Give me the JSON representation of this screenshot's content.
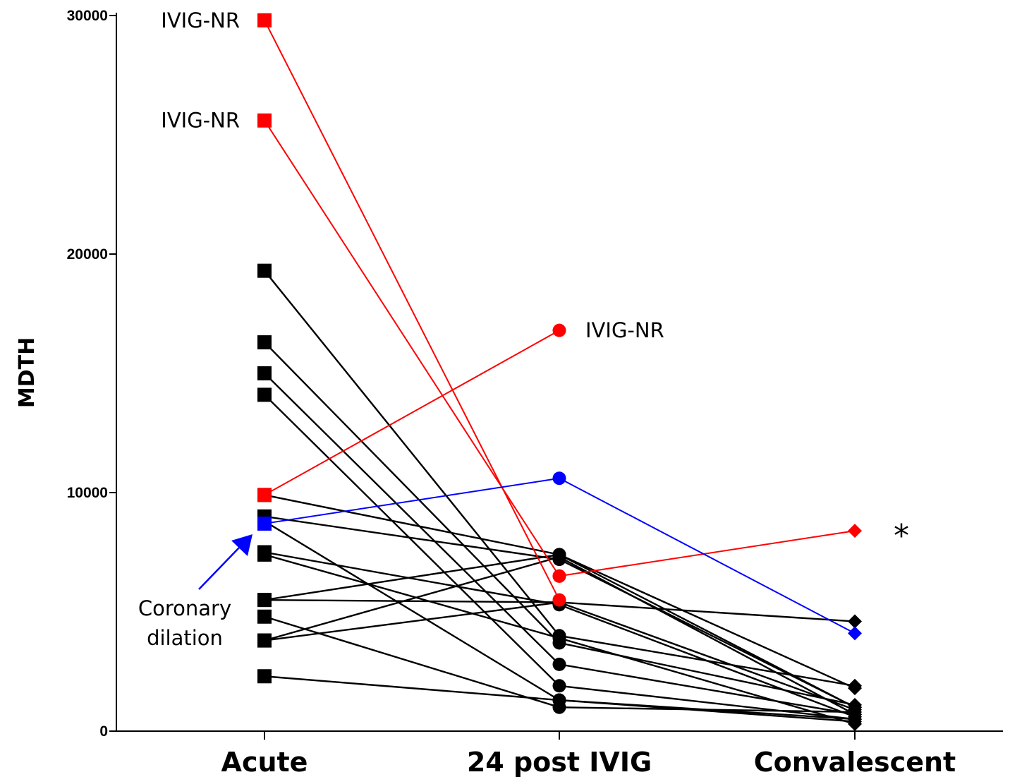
{
  "chart_data": {
    "type": "line",
    "title": "",
    "xlabel": "",
    "ylabel": "MDTH",
    "categories": [
      "Acute",
      "24 post IVIG",
      "Convalescent"
    ],
    "ylim": [
      0,
      30000
    ],
    "yticks": [
      "0",
      "10000",
      "20000",
      "30000"
    ],
    "colors": {
      "default": "#000000",
      "nr": "#ff0000",
      "coronary": "#0000ff"
    },
    "series": [
      {
        "values": [
          29800,
          5500,
          null
        ],
        "color": "nr"
      },
      {
        "values": [
          25600,
          6500,
          null
        ],
        "color": "nr"
      },
      {
        "values": [
          9900,
          16800,
          null
        ],
        "color": "nr"
      },
      {
        "values": [
          null,
          6500,
          8400
        ],
        "color": "nr"
      },
      {
        "values": [
          8700,
          10600,
          4100
        ],
        "color": "coronary"
      },
      {
        "values": [
          19300,
          4000,
          1900
        ],
        "color": "default"
      },
      {
        "values": [
          16300,
          3700,
          1100
        ],
        "color": "default"
      },
      {
        "values": [
          15000,
          2800,
          700
        ],
        "color": "default"
      },
      {
        "values": [
          14100,
          1900,
          500
        ],
        "color": "default"
      },
      {
        "values": [
          9900,
          7400,
          1800
        ],
        "color": "default"
      },
      {
        "values": [
          9000,
          7200,
          1000
        ],
        "color": "default"
      },
      {
        "values": [
          8800,
          1300,
          500
        ],
        "color": "default"
      },
      {
        "values": [
          7500,
          5300,
          600
        ],
        "color": "default"
      },
      {
        "values": [
          7400,
          3900,
          300
        ],
        "color": "default"
      },
      {
        "values": [
          5500,
          7400,
          1000
        ],
        "color": "default"
      },
      {
        "values": [
          5500,
          5400,
          4600
        ],
        "color": "default"
      },
      {
        "values": [
          4800,
          1000,
          800
        ],
        "color": "default"
      },
      {
        "values": [
          3800,
          5400,
          900
        ],
        "color": "default"
      },
      {
        "values": [
          3800,
          7300,
          700
        ],
        "color": "default"
      },
      {
        "values": [
          2300,
          1300,
          400
        ],
        "color": "default"
      }
    ],
    "annotations": [
      {
        "text": "IVIG-NR",
        "target": 0
      },
      {
        "text": "IVIG-NR",
        "target": 1
      },
      {
        "text": "IVIG-NR",
        "target": 2
      },
      {
        "text": "*",
        "target": 3
      },
      {
        "text_lines": [
          "Coronary",
          "dilation"
        ],
        "target": 4
      }
    ]
  }
}
